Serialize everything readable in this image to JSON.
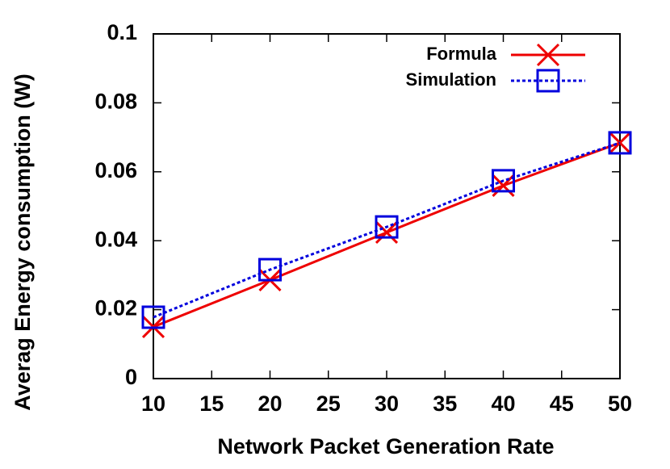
{
  "chart_data": {
    "type": "line",
    "x_label": "Network Packet Generation Rate",
    "y_label": "Averag Energy consumption (W)",
    "x": [
      10,
      20,
      30,
      40,
      50
    ],
    "series": [
      {
        "name": "Formula",
        "color": "#ee0000",
        "marker": "x",
        "dashed": false,
        "values": [
          0.015,
          0.0286,
          0.0424,
          0.056,
          0.0684
        ]
      },
      {
        "name": "Simulation",
        "color": "#0000dd",
        "marker": "square",
        "dashed": true,
        "values": [
          0.0178,
          0.0316,
          0.044,
          0.0574,
          0.0684
        ]
      }
    ],
    "xlim": [
      10,
      50
    ],
    "xticks": [
      10,
      15,
      20,
      25,
      30,
      35,
      40,
      45,
      50
    ],
    "ylim": [
      0,
      0.1
    ],
    "yticks": [
      0,
      0.02,
      0.04,
      0.06,
      0.08,
      0.1
    ],
    "grid": false,
    "legend": "top-right"
  }
}
